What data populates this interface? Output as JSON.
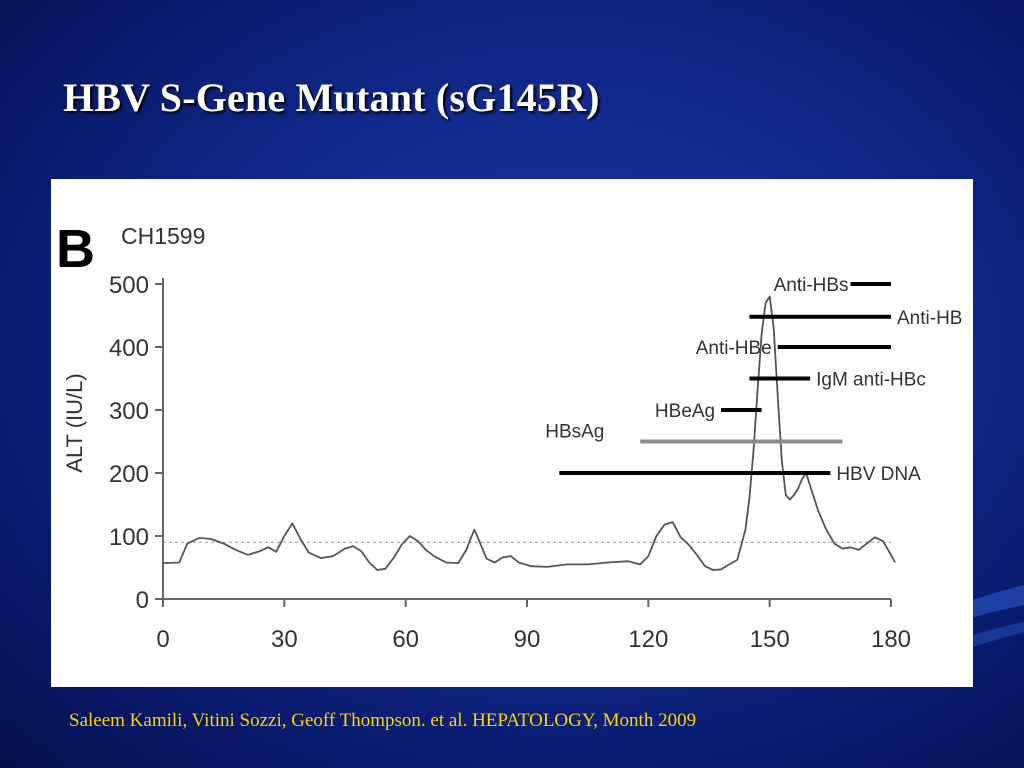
{
  "slide": {
    "title": "HBV S-Gene Mutant (sG145R)",
    "citation": "Saleem Kamili, Vitini Sozzi, Geoff Thompson. et al. HEPATOLOGY, Month 2009",
    "background_color": "#10288a",
    "title_color": "#ffffff",
    "citation_color": "#ffd200"
  },
  "chart_data": {
    "type": "line",
    "panel_label": "B",
    "patient_id": "CH1599",
    "ylabel": "ALT (IU/L)",
    "xlabel": "",
    "xlim": [
      0,
      180
    ],
    "ylim": [
      0,
      500
    ],
    "x_ticks": [
      0,
      30,
      60,
      90,
      120,
      150,
      180
    ],
    "y_ticks": [
      0,
      100,
      200,
      300,
      400,
      500
    ],
    "reference_line": 90,
    "series": [
      {
        "points": [
          [
            0,
            57
          ],
          [
            4,
            58
          ],
          [
            6,
            88
          ],
          [
            9,
            97
          ],
          [
            12,
            95
          ],
          [
            15,
            88
          ],
          [
            18,
            78
          ],
          [
            21,
            70
          ],
          [
            24,
            76
          ],
          [
            26,
            82
          ],
          [
            28,
            75
          ],
          [
            30,
            100
          ],
          [
            32,
            120
          ],
          [
            34,
            95
          ],
          [
            36,
            74
          ],
          [
            39,
            65
          ],
          [
            42,
            68
          ],
          [
            45,
            80
          ],
          [
            47,
            84
          ],
          [
            49,
            76
          ],
          [
            51,
            58
          ],
          [
            53,
            46
          ],
          [
            55,
            48
          ],
          [
            57,
            65
          ],
          [
            59,
            86
          ],
          [
            61,
            100
          ],
          [
            63,
            92
          ],
          [
            65,
            78
          ],
          [
            67,
            68
          ],
          [
            70,
            58
          ],
          [
            73,
            57
          ],
          [
            75,
            78
          ],
          [
            76,
            95
          ],
          [
            77,
            110
          ],
          [
            78,
            95
          ],
          [
            80,
            64
          ],
          [
            82,
            58
          ],
          [
            84,
            66
          ],
          [
            86,
            68
          ],
          [
            88,
            58
          ],
          [
            91,
            52
          ],
          [
            95,
            51
          ],
          [
            100,
            55
          ],
          [
            105,
            55
          ],
          [
            110,
            58
          ],
          [
            115,
            60
          ],
          [
            118,
            55
          ],
          [
            120,
            68
          ],
          [
            122,
            100
          ],
          [
            124,
            118
          ],
          [
            126,
            122
          ],
          [
            128,
            98
          ],
          [
            130,
            86
          ],
          [
            132,
            70
          ],
          [
            134,
            52
          ],
          [
            136,
            46
          ],
          [
            138,
            47
          ],
          [
            140,
            55
          ],
          [
            142,
            62
          ],
          [
            144,
            110
          ],
          [
            145,
            160
          ],
          [
            146,
            235
          ],
          [
            147,
            330
          ],
          [
            148,
            420
          ],
          [
            149,
            470
          ],
          [
            150,
            480
          ],
          [
            151,
            430
          ],
          [
            152,
            320
          ],
          [
            153,
            220
          ],
          [
            154,
            165
          ],
          [
            155,
            158
          ],
          [
            156,
            165
          ],
          [
            157,
            175
          ],
          [
            158,
            190
          ],
          [
            159,
            200
          ],
          [
            160,
            180
          ],
          [
            162,
            140
          ],
          [
            164,
            110
          ],
          [
            166,
            88
          ],
          [
            168,
            80
          ],
          [
            170,
            82
          ],
          [
            172,
            78
          ],
          [
            174,
            88
          ],
          [
            176,
            98
          ],
          [
            178,
            92
          ],
          [
            180,
            70
          ],
          [
            181,
            58
          ]
        ]
      }
    ],
    "markers": [
      {
        "label": "Anti-HBs",
        "start": 170,
        "end": 180,
        "y": 500,
        "color": "#000000"
      },
      {
        "label": "Anti-HB",
        "start": 145,
        "end": 180,
        "y": 448,
        "color": "#000000"
      },
      {
        "label": "Anti-HBe",
        "start": 152,
        "end": 180,
        "y": 400,
        "color": "#000000"
      },
      {
        "label": "IgM anti-HBc",
        "start": 145,
        "end": 160,
        "y": 350,
        "color": "#000000"
      },
      {
        "label": "HBeAg",
        "start": 138,
        "end": 148,
        "y": 300,
        "color": "#000000"
      },
      {
        "label": "HBsAg",
        "start": 118,
        "end": 168,
        "y": 250,
        "color": "#8c8c8c"
      },
      {
        "label": "HBV DNA",
        "start": 98,
        "end": 165,
        "y": 200,
        "color": "#000000"
      }
    ],
    "grid": false,
    "line_color": "#555555"
  }
}
